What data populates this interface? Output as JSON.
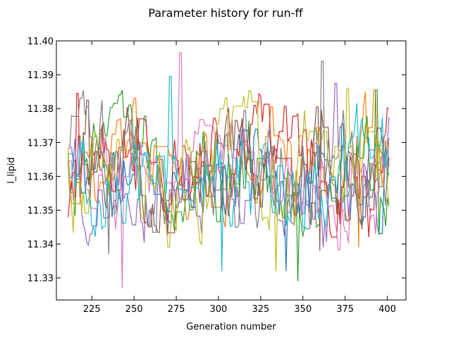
{
  "chart_data": {
    "type": "line",
    "title": "Parameter history for run-ff",
    "xlabel": "Generation number",
    "ylabel": "l_lipid",
    "xlim": [
      204,
      411
    ],
    "ylim": [
      11.3235,
      11.4
    ],
    "xticks": [
      225,
      250,
      275,
      300,
      325,
      350,
      375,
      400
    ],
    "yticks": [
      11.33,
      11.34,
      11.35,
      11.36,
      11.37,
      11.38,
      11.39,
      11.4
    ],
    "ytick_labels": [
      "11.33",
      "11.34",
      "11.35",
      "11.36",
      "11.37",
      "11.38",
      "11.39",
      "11.40"
    ],
    "tick_direction": "in",
    "ticks_on_all_sides": true,
    "grid": false,
    "legend": "none",
    "x_start": 211,
    "x_end": 401,
    "mean": 11.3615,
    "series": [
      {
        "color": "#1f77b4",
        "min": 11.332,
        "max": 11.3755,
        "seed": 11
      },
      {
        "color": "#ff7f0e",
        "min": 11.339,
        "max": 11.3855,
        "seed": 23
      },
      {
        "color": "#2ca02c",
        "min": 11.329,
        "max": 11.3855,
        "seed": 37
      },
      {
        "color": "#d62728",
        "min": 11.342,
        "max": 11.3845,
        "seed": 41
      },
      {
        "color": "#9467bd",
        "min": 11.339,
        "max": 11.3875,
        "seed": 53
      },
      {
        "color": "#8c564b",
        "min": 11.338,
        "max": 11.3825,
        "seed": 67
      },
      {
        "color": "#e377c2",
        "min": 11.327,
        "max": 11.3965,
        "seed": 79
      },
      {
        "color": "#7f7f7f",
        "min": 11.337,
        "max": 11.394,
        "seed": 83
      },
      {
        "color": "#bcbd22",
        "min": 11.332,
        "max": 11.386,
        "seed": 97
      },
      {
        "color": "#17becf",
        "min": 11.332,
        "max": 11.3895,
        "seed": 103
      }
    ]
  }
}
